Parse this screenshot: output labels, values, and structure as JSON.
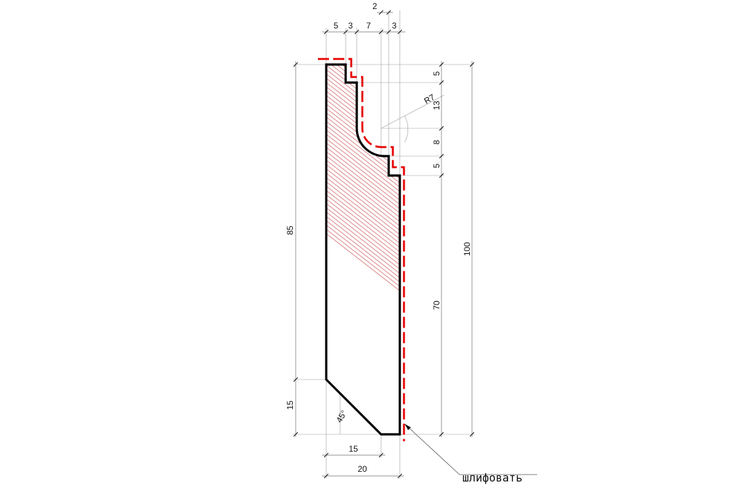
{
  "dimensions": {
    "top_5": "5",
    "top_3a": "3",
    "top_7": "7",
    "top_2": "2",
    "top_3b": "3",
    "right_5a": "5",
    "right_13": "13",
    "right_8": "8",
    "right_5b": "5",
    "right_70": "70",
    "right_100": "100",
    "left_85": "85",
    "left_15": "15",
    "bottom_15": "15",
    "bottom_20": "20",
    "radius": "R7",
    "angle": "45°"
  },
  "note": "шлифовать",
  "colors": {
    "outline": "#000000",
    "finish_line": "#e60000",
    "hatch": "#c43a3a"
  }
}
